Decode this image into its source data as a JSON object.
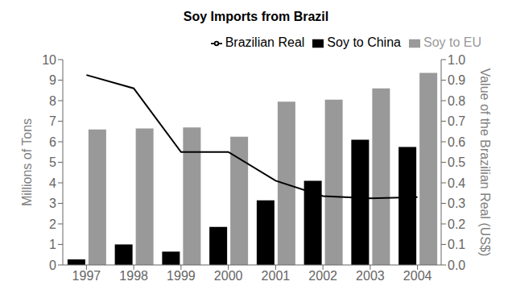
{
  "chart_data": {
    "type": "bar",
    "title": "Soy Imports from Brazil",
    "categories": [
      "1997",
      "1998",
      "1999",
      "2000",
      "2001",
      "2002",
      "2003",
      "2004"
    ],
    "series": [
      {
        "name": "Soy to China",
        "color": "#000000",
        "values": [
          0.27,
          1.0,
          0.65,
          1.85,
          3.15,
          4.1,
          6.1,
          5.75
        ]
      },
      {
        "name": "Soy to EU",
        "color": "#999999",
        "values": [
          6.6,
          6.65,
          6.7,
          6.25,
          7.95,
          8.05,
          8.6,
          9.35
        ]
      },
      {
        "name": "Brazilian Real",
        "color": "#000000",
        "type": "line",
        "axis": "y2",
        "marker": "none",
        "values": [
          0.925,
          0.86,
          0.55,
          0.55,
          0.41,
          0.335,
          0.325,
          0.33
        ]
      }
    ],
    "ylabel": "Millions of Tons",
    "y2label": "Value of the Brazilian Real (US$)",
    "ylim": [
      0,
      10
    ],
    "yticks": [
      0,
      1,
      2,
      3,
      4,
      5,
      6,
      7,
      8,
      9,
      10
    ],
    "y2lim": [
      0.0,
      1.0
    ],
    "y2ticks": [
      {
        "value": 0,
        "label": "0.0"
      },
      0.1,
      0.2,
      0.3,
      0.4,
      0.5,
      0.6,
      0.7,
      0.8,
      0.9,
      {
        "value": 1,
        "label": "1.0"
      }
    ],
    "grid": false,
    "legend": "upper right"
  }
}
